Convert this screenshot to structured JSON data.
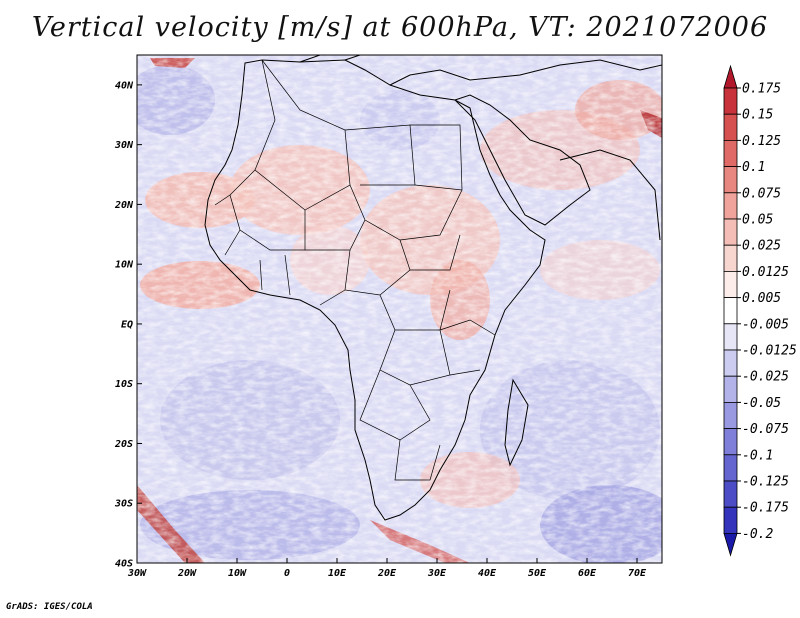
{
  "title": "Vertical velocity [m/s] at 600hPa, VT: 2021072006",
  "footer": "GrADS: IGES/COLA",
  "map": {
    "lon_range": [
      -30,
      75
    ],
    "lat_range": [
      -40,
      45
    ],
    "lon_ticks": [
      "30W",
      "20W",
      "10W",
      "0",
      "10E",
      "20E",
      "30E",
      "40E",
      "50E",
      "60E",
      "70E"
    ],
    "lon_tick_values": [
      -30,
      -20,
      -10,
      0,
      10,
      20,
      30,
      40,
      50,
      60,
      70
    ],
    "lat_ticks": [
      "40N",
      "30N",
      "20N",
      "10N",
      "EQ",
      "10S",
      "20S",
      "30S",
      "40S"
    ],
    "lat_tick_values": [
      40,
      30,
      20,
      10,
      0,
      -10,
      -20,
      -30,
      -40
    ],
    "field": "vertical velocity at 600hPa",
    "units": "m/s"
  },
  "colorbar": {
    "labels": [
      "0.175",
      "0.15",
      "0.125",
      "0.1",
      "0.075",
      "0.05",
      "0.025",
      "0.0125",
      "0.005",
      "-0.005",
      "-0.0125",
      "-0.025",
      "-0.05",
      "-0.075",
      "-0.1",
      "-0.125",
      "-0.175",
      "-0.2"
    ],
    "colors": [
      "#b2182b",
      "#c8323a",
      "#d6504f",
      "#e06b66",
      "#e8877f",
      "#efa39a",
      "#f4bdb5",
      "#f8d6d0",
      "#fcecea",
      "#ffffff",
      "#e6e6f7",
      "#ccccf0",
      "#b3b3ea",
      "#9999e2",
      "#7f7fd9",
      "#6666d1",
      "#4c4cc6",
      "#3333bb",
      "#1a1aa8"
    ]
  }
}
